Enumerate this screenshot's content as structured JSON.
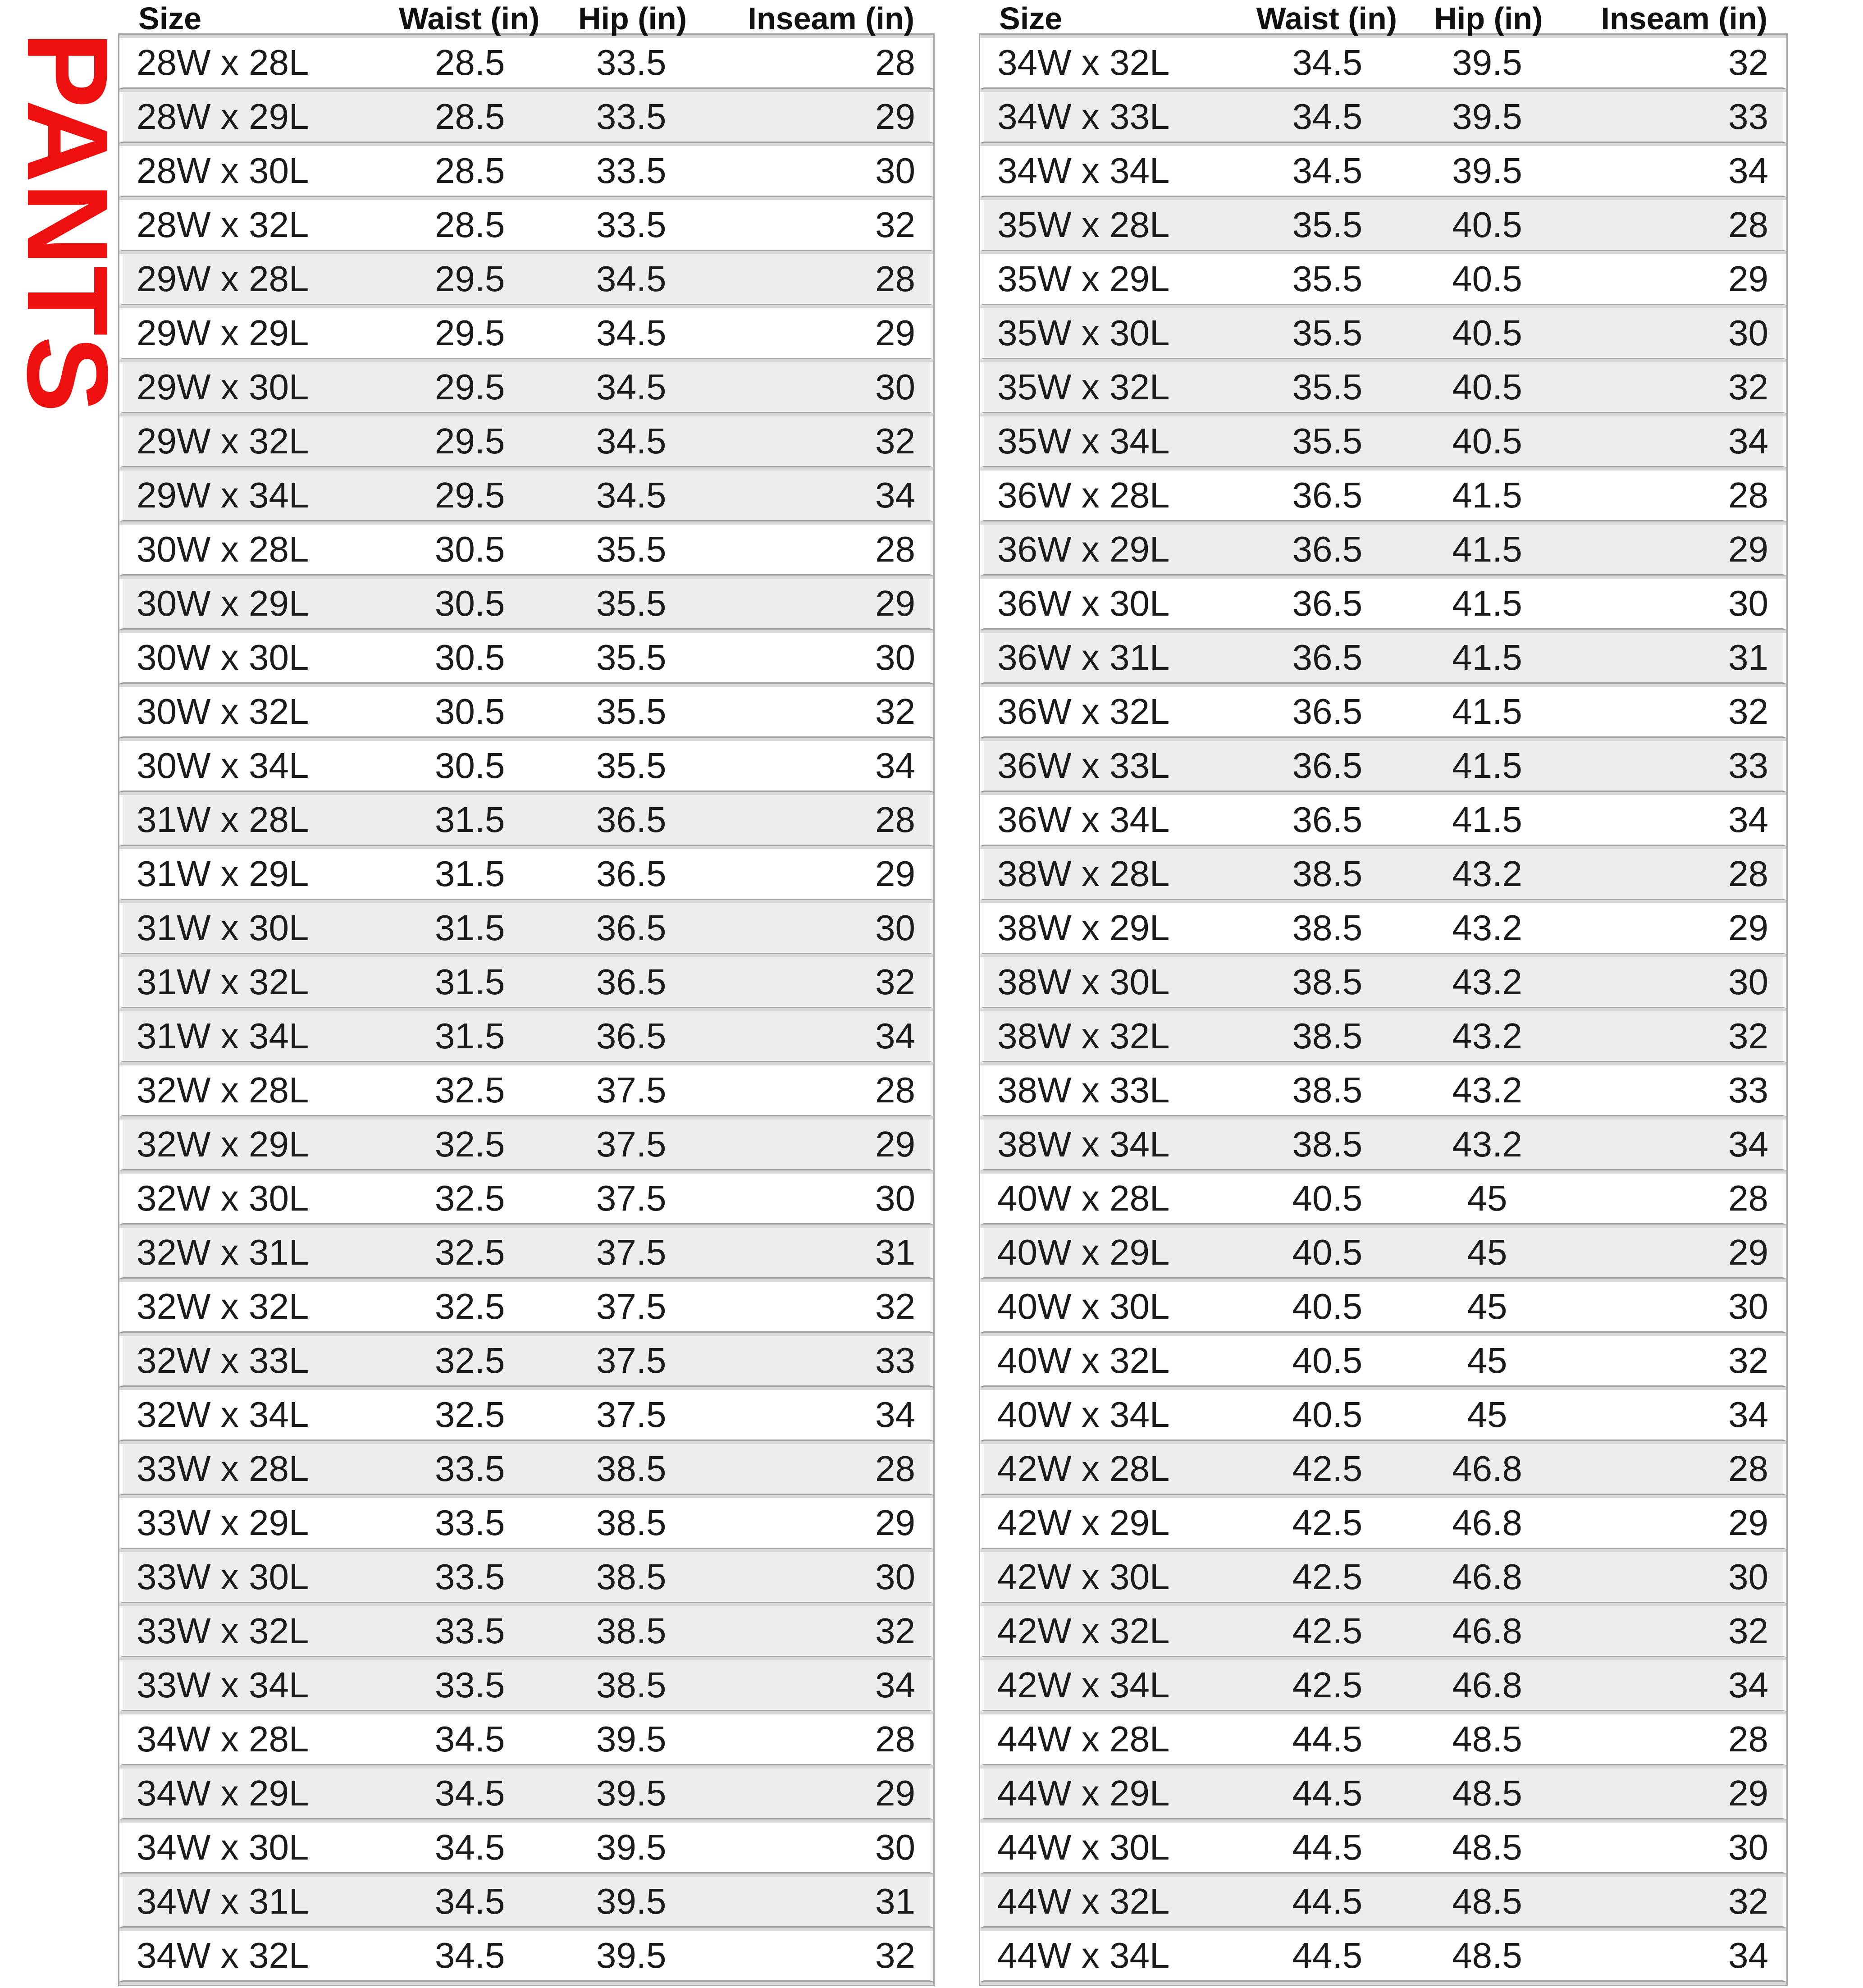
{
  "page": {
    "vertical_label": "PANTS"
  },
  "colors": {
    "accent_red": "#ee0f0f",
    "row_white": "#ffffff",
    "row_alt": "#ededeb",
    "separator_dark": "#a2a2a2",
    "separator_light": "#d8d8d6",
    "outer_border": "#a6a6a6",
    "text": "#1b1b1b"
  },
  "chart_data": [
    {
      "type": "table",
      "position": "left",
      "columns": [
        "Size",
        "Waist (in)",
        "Hip (in)",
        "Inseam (in)"
      ],
      "rows": [
        [
          "28W x 28L",
          "28.5",
          "33.5",
          "28"
        ],
        [
          "28W x 29L",
          "28.5",
          "33.5",
          "29"
        ],
        [
          "28W x 30L",
          "28.5",
          "33.5",
          "30"
        ],
        [
          "28W x 32L",
          "28.5",
          "33.5",
          "32"
        ],
        [
          "29W x 28L",
          "29.5",
          "34.5",
          "28"
        ],
        [
          "29W x 29L",
          "29.5",
          "34.5",
          "29"
        ],
        [
          "29W x 30L",
          "29.5",
          "34.5",
          "30"
        ],
        [
          "29W x 32L",
          "29.5",
          "34.5",
          "32"
        ],
        [
          "29W x 34L",
          "29.5",
          "34.5",
          "34"
        ],
        [
          "30W x 28L",
          "30.5",
          "35.5",
          "28"
        ],
        [
          "30W x 29L",
          "30.5",
          "35.5",
          "29"
        ],
        [
          "30W x 30L",
          "30.5",
          "35.5",
          "30"
        ],
        [
          "30W x 32L",
          "30.5",
          "35.5",
          "32"
        ],
        [
          "30W x 34L",
          "30.5",
          "35.5",
          "34"
        ],
        [
          "31W x 28L",
          "31.5",
          "36.5",
          "28"
        ],
        [
          "31W x 29L",
          "31.5",
          "36.5",
          "29"
        ],
        [
          "31W x 30L",
          "31.5",
          "36.5",
          "30"
        ],
        [
          "31W x 32L",
          "31.5",
          "36.5",
          "32"
        ],
        [
          "31W x 34L",
          "31.5",
          "36.5",
          "34"
        ],
        [
          "32W x 28L",
          "32.5",
          "37.5",
          "28"
        ],
        [
          "32W x 29L",
          "32.5",
          "37.5",
          "29"
        ],
        [
          "32W x 30L",
          "32.5",
          "37.5",
          "30"
        ],
        [
          "32W x 31L",
          "32.5",
          "37.5",
          "31"
        ],
        [
          "32W x 32L",
          "32.5",
          "37.5",
          "32"
        ],
        [
          "32W x 33L",
          "32.5",
          "37.5",
          "33"
        ],
        [
          "32W x 34L",
          "32.5",
          "37.5",
          "34"
        ],
        [
          "33W x 28L",
          "33.5",
          "38.5",
          "28"
        ],
        [
          "33W x 29L",
          "33.5",
          "38.5",
          "29"
        ],
        [
          "33W x 30L",
          "33.5",
          "38.5",
          "30"
        ],
        [
          "33W x 32L",
          "33.5",
          "38.5",
          "32"
        ],
        [
          "33W x 34L",
          "33.5",
          "38.5",
          "34"
        ],
        [
          "34W x 28L",
          "34.5",
          "39.5",
          "28"
        ],
        [
          "34W x 29L",
          "34.5",
          "39.5",
          "29"
        ],
        [
          "34W x 30L",
          "34.5",
          "39.5",
          "30"
        ],
        [
          "34W x 31L",
          "34.5",
          "39.5",
          "31"
        ],
        [
          "34W x 32L",
          "34.5",
          "39.5",
          "32"
        ]
      ],
      "row_shades": [
        "w",
        "g",
        "w",
        "w",
        "g",
        "w",
        "g",
        "g",
        "g",
        "w",
        "g",
        "w",
        "w",
        "w",
        "g",
        "w",
        "g",
        "g",
        "g",
        "w",
        "g",
        "w",
        "g",
        "w",
        "g",
        "w",
        "g",
        "w",
        "g",
        "g",
        "g",
        "w",
        "g",
        "w",
        "g",
        "w"
      ]
    },
    {
      "type": "table",
      "position": "right",
      "columns": [
        "Size",
        "Waist (in)",
        "Hip (in)",
        "Inseam (in)"
      ],
      "rows": [
        [
          "34W x 32L",
          "34.5",
          "39.5",
          "32"
        ],
        [
          "34W x 33L",
          "34.5",
          "39.5",
          "33"
        ],
        [
          "34W x 34L",
          "34.5",
          "39.5",
          "34"
        ],
        [
          "35W x 28L",
          "35.5",
          "40.5",
          "28"
        ],
        [
          "35W x 29L",
          "35.5",
          "40.5",
          "29"
        ],
        [
          "35W x 30L",
          "35.5",
          "40.5",
          "30"
        ],
        [
          "35W x 32L",
          "35.5",
          "40.5",
          "32"
        ],
        [
          "35W x 34L",
          "35.5",
          "40.5",
          "34"
        ],
        [
          "36W x 28L",
          "36.5",
          "41.5",
          "28"
        ],
        [
          "36W x 29L",
          "36.5",
          "41.5",
          "29"
        ],
        [
          "36W x 30L",
          "36.5",
          "41.5",
          "30"
        ],
        [
          "36W x 31L",
          "36.5",
          "41.5",
          "31"
        ],
        [
          "36W x 32L",
          "36.5",
          "41.5",
          "32"
        ],
        [
          "36W x 33L",
          "36.5",
          "41.5",
          "33"
        ],
        [
          "36W x 34L",
          "36.5",
          "41.5",
          "34"
        ],
        [
          "38W x 28L",
          "38.5",
          "43.2",
          "28"
        ],
        [
          "38W x 29L",
          "38.5",
          "43.2",
          "29"
        ],
        [
          "38W x 30L",
          "38.5",
          "43.2",
          "30"
        ],
        [
          "38W x 32L",
          "38.5",
          "43.2",
          "32"
        ],
        [
          "38W x 33L",
          "38.5",
          "43.2",
          "33"
        ],
        [
          "38W x 34L",
          "38.5",
          "43.2",
          "34"
        ],
        [
          "40W x 28L",
          "40.5",
          "45",
          "28"
        ],
        [
          "40W x 29L",
          "40.5",
          "45",
          "29"
        ],
        [
          "40W x 30L",
          "40.5",
          "45",
          "30"
        ],
        [
          "40W x 32L",
          "40.5",
          "45",
          "32"
        ],
        [
          "40W x 34L",
          "40.5",
          "45",
          "34"
        ],
        [
          "42W x 28L",
          "42.5",
          "46.8",
          "28"
        ],
        [
          "42W x 29L",
          "42.5",
          "46.8",
          "29"
        ],
        [
          "42W x 30L",
          "42.5",
          "46.8",
          "30"
        ],
        [
          "42W x 32L",
          "42.5",
          "46.8",
          "32"
        ],
        [
          "42W x 34L",
          "42.5",
          "46.8",
          "34"
        ],
        [
          "44W x 28L",
          "44.5",
          "48.5",
          "28"
        ],
        [
          "44W x 29L",
          "44.5",
          "48.5",
          "29"
        ],
        [
          "44W x 30L",
          "44.5",
          "48.5",
          "30"
        ],
        [
          "44W x 32L",
          "44.5",
          "48.5",
          "32"
        ],
        [
          "44W x 34L",
          "44.5",
          "48.5",
          "34"
        ]
      ],
      "row_shades": [
        "w",
        "g",
        "w",
        "g",
        "w",
        "g",
        "g",
        "g",
        "w",
        "g",
        "w",
        "g",
        "w",
        "g",
        "w",
        "g",
        "w",
        "g",
        "g",
        "w",
        "g",
        "w",
        "g",
        "w",
        "w",
        "w",
        "g",
        "w",
        "g",
        "g",
        "g",
        "w",
        "g",
        "w",
        "g",
        "w"
      ]
    }
  ]
}
